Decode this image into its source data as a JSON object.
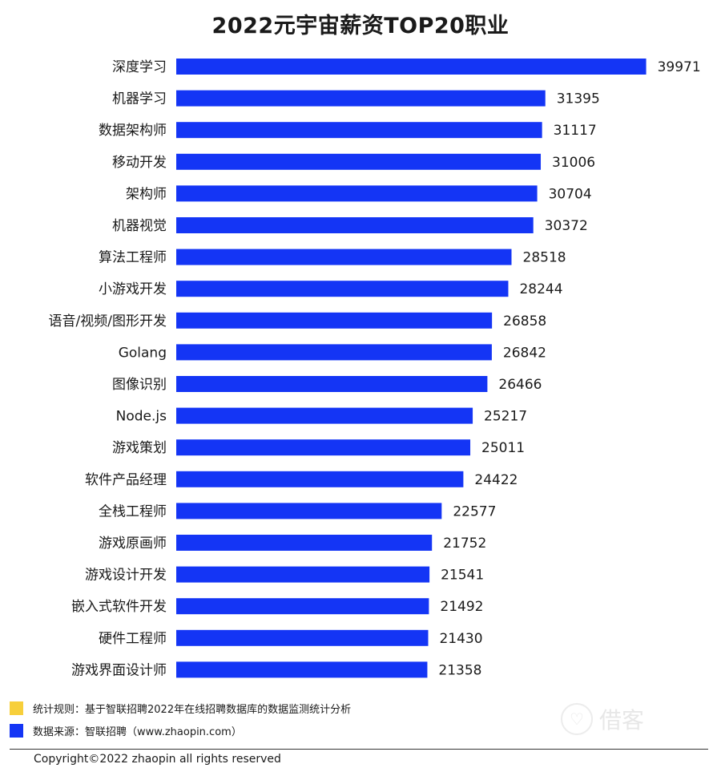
{
  "chart_data": {
    "type": "bar",
    "orientation": "horizontal",
    "title": "2022元宇宙薪资TOP20职业",
    "categories": [
      "深度学习",
      "机器学习",
      "数据架构师",
      "移动开发",
      "架构师",
      "机器视觉",
      "算法工程师",
      "小游戏开发",
      "语音/视频/图形开发",
      "Golang",
      "图像识别",
      "Node.js",
      "游戏策划",
      "软件产品经理",
      "全栈工程师",
      "游戏原画师",
      "游戏设计开发",
      "嵌入式软件开发",
      "硬件工程师",
      "游戏界面设计师"
    ],
    "values": [
      39971,
      31395,
      31117,
      31006,
      30704,
      30372,
      28518,
      28244,
      26858,
      26842,
      26466,
      25217,
      25011,
      24422,
      22577,
      21752,
      21541,
      21492,
      21430,
      21358
    ],
    "bar_color": "#1435f5",
    "xlim": [
      0,
      40000
    ],
    "grid": false
  },
  "legend": [
    {
      "label": "统计规则：基于智联招聘2022年在线招聘数据库的数据监测统计分析",
      "color": "#f7cf3b"
    },
    {
      "label": "数据来源：智联招聘（www.zhaopin.com）",
      "color": "#1435f5"
    }
  ],
  "footer": {
    "copyright": "Copyright©2022 zhaopin all rights reserved"
  },
  "watermark": {
    "icon": "heart-icon",
    "text": "借客"
  }
}
